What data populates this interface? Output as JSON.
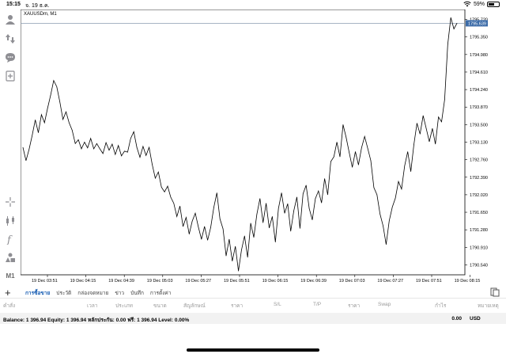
{
  "status_bar": {
    "time": "15:15",
    "date": "จ. 19 ธ.ค.",
    "battery": "59%",
    "battery_level": 0.59
  },
  "toolbar": {
    "timeframe": "M1"
  },
  "chart": {
    "symbol_title": "XAUUSDm, M1"
  },
  "chart_data": {
    "type": "line",
    "y_ticks": [
      "1795.720",
      "1795.350",
      "1794.980",
      "1794.610",
      "1794.240",
      "1793.870",
      "1793.500",
      "1793.130",
      "1792.760",
      "1792.390",
      "1792.020",
      "1791.650",
      "1791.280",
      "1790.910",
      "1790.540"
    ],
    "y_tick_values": [
      1795.72,
      1795.35,
      1794.98,
      1794.61,
      1794.24,
      1793.87,
      1793.5,
      1793.13,
      1792.76,
      1792.39,
      1792.02,
      1791.65,
      1791.28,
      1790.91,
      1790.54
    ],
    "ylim": [
      1790.33,
      1795.93
    ],
    "x_ticks": [
      "19 Dec 03:51",
      "19 Dec 04:15",
      "19 Dec 04:39",
      "19 Dec 05:03",
      "19 Dec 05:27",
      "19 Dec 05:51",
      "19 Dec 06:15",
      "19 Dec 06:39",
      "19 Dec 07:03",
      "19 Dec 07:27",
      "19 Dec 07:51",
      "19 Dec 08:15"
    ],
    "current_price": "1795.639",
    "current_price_value": 1795.639,
    "series": [
      {
        "values": [
          1793.02,
          1792.74,
          1792.98,
          1793.27,
          1793.6,
          1793.33,
          1793.71,
          1793.54,
          1793.84,
          1794.12,
          1794.43,
          1794.3,
          1793.98,
          1793.61,
          1793.77,
          1793.54,
          1793.38,
          1793.1,
          1793.18,
          1792.99,
          1793.13,
          1793.01,
          1793.21,
          1792.99,
          1793.1,
          1792.99,
          1792.89,
          1793.12,
          1792.96,
          1793.09,
          1792.87,
          1793.06,
          1792.84,
          1792.94,
          1792.92,
          1793.21,
          1793.35,
          1793.02,
          1792.81,
          1793.04,
          1792.85,
          1793.02,
          1792.66,
          1792.37,
          1792.5,
          1792.18,
          1792.08,
          1792.2,
          1791.97,
          1791.84,
          1791.56,
          1791.78,
          1791.35,
          1791.54,
          1791.19,
          1791.46,
          1791.63,
          1791.34,
          1791.08,
          1791.35,
          1791.06,
          1791.33,
          1791.75,
          1792.06,
          1791.51,
          1791.3,
          1790.73,
          1791.08,
          1790.62,
          1790.93,
          1790.41,
          1790.85,
          1791.15,
          1790.7,
          1791.42,
          1791.12,
          1791.61,
          1791.94,
          1791.43,
          1791.84,
          1791.32,
          1791.56,
          1791.02,
          1791.73,
          1792.06,
          1791.63,
          1791.83,
          1791.25,
          1791.68,
          1791.97,
          1791.31,
          1792.04,
          1792.22,
          1791.73,
          1791.49,
          1791.94,
          1792.1,
          1791.85,
          1792.36,
          1792.02,
          1792.72,
          1792.82,
          1793.13,
          1792.82,
          1793.5,
          1793.23,
          1792.91,
          1792.6,
          1792.93,
          1792.65,
          1793.01,
          1793.25,
          1793.0,
          1792.74,
          1792.17,
          1792.02,
          1791.61,
          1791.36,
          1790.97,
          1791.47,
          1791.76,
          1791.95,
          1792.3,
          1792.14,
          1792.63,
          1792.93,
          1792.51,
          1793.08,
          1793.53,
          1793.3,
          1793.69,
          1793.42,
          1793.14,
          1793.42,
          1793.09,
          1793.66,
          1793.56,
          1794.03,
          1795.19,
          1795.76,
          1795.52,
          1795.64
        ]
      }
    ]
  },
  "tabs": [
    "การซื้อขาย",
    "ประวัติ",
    "กล่องจดหมาย",
    "ข่าว",
    "บันทึก",
    "การตั้งค่า"
  ],
  "table_headers": [
    "คำสั่ง",
    "เวลา",
    "ประเภท",
    "ขนาด",
    "สัญลักษณ์",
    "ราคา",
    "S/L",
    "T/P",
    "ราคา",
    "Swap",
    "กำไร",
    "หมายเหตุ"
  ],
  "balance": {
    "text": "Balance: 1 396.94 Equity: 1 396.94 หลักประกัน: 0.00 ฟรี: 1 396.94 Level: 0.00%",
    "total": "0.00",
    "currency": "USD"
  }
}
